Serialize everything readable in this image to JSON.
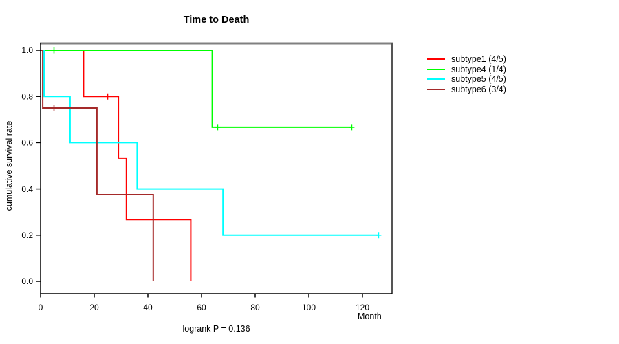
{
  "title": "Time to Death",
  "footer": "logrank P = 0.136",
  "axes": {
    "x_label": "Month",
    "y_label": "cumulative survival rate",
    "x_ticks": [
      "0",
      "20",
      "40",
      "60",
      "80",
      "100",
      "120"
    ],
    "x_tick_values": [
      0,
      20,
      40,
      60,
      80,
      100,
      120
    ],
    "y_ticks": [
      "1.0",
      "0.8",
      "0.6",
      "0.4",
      "0.2",
      "0.0"
    ],
    "y_tick_values": [
      1.0,
      0.8,
      0.6,
      0.4,
      0.2,
      0.0
    ]
  },
  "chart_data": {
    "type": "line",
    "variant": "kaplan-meier-step",
    "title": "Time to Death",
    "xlabel": "Month",
    "ylabel": "cumulative survival rate",
    "xlim": [
      0,
      131
    ],
    "ylim": [
      0.0,
      1.0
    ],
    "grid": false,
    "legend_position": "right-outside",
    "annotation": "logrank P = 0.136",
    "series": [
      {
        "name": "subtype1 (4/5)",
        "color": "#ff0000",
        "points": [
          [
            0,
            1.0
          ],
          [
            16,
            1.0
          ],
          [
            16,
            0.8
          ],
          [
            29,
            0.8
          ],
          [
            29,
            0.533
          ],
          [
            32,
            0.533
          ],
          [
            32,
            0.267
          ],
          [
            56,
            0.267
          ],
          [
            56,
            0.0
          ]
        ],
        "censors": [
          [
            25,
            0.8
          ]
        ]
      },
      {
        "name": "subtype4 (1/4)",
        "color": "#00ff00",
        "points": [
          [
            0,
            1.0
          ],
          [
            64,
            1.0
          ],
          [
            64,
            0.667
          ],
          [
            116,
            0.667
          ]
        ],
        "censors": [
          [
            5,
            1.0
          ],
          [
            66,
            0.667
          ],
          [
            116,
            0.667
          ]
        ]
      },
      {
        "name": "subtype5 (4/5)",
        "color": "#00ffff",
        "points": [
          [
            0,
            1.0
          ],
          [
            1.3,
            1.0
          ],
          [
            1.3,
            0.8
          ],
          [
            11,
            0.8
          ],
          [
            11,
            0.6
          ],
          [
            36,
            0.6
          ],
          [
            36,
            0.4
          ],
          [
            68,
            0.4
          ],
          [
            68,
            0.2
          ],
          [
            126,
            0.2
          ]
        ],
        "censors": [
          [
            126,
            0.2
          ]
        ]
      },
      {
        "name": "subtype6 (3/4)",
        "color": "#a52a2a",
        "points": [
          [
            0,
            1.0
          ],
          [
            0.8,
            1.0
          ],
          [
            0.8,
            0.75
          ],
          [
            21,
            0.75
          ],
          [
            21,
            0.375
          ],
          [
            42,
            0.375
          ],
          [
            42,
            0.0
          ]
        ],
        "censors": [
          [
            5,
            0.75
          ]
        ]
      }
    ]
  },
  "colors": {
    "box_top": "#808080",
    "box_right": "#555555",
    "axis": "#000000",
    "background": "#ffffff"
  }
}
